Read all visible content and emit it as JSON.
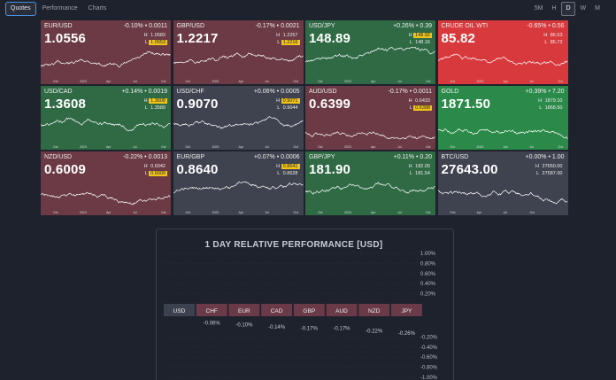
{
  "nav": {
    "tabs": [
      "Quotes",
      "Performance",
      "Charts"
    ],
    "active": 0
  },
  "range": {
    "buttons": [
      "5M",
      "H",
      "D",
      "W",
      "M"
    ],
    "active": 2
  },
  "colors": {
    "red": "#6b3a44",
    "green": "#2f6a45",
    "gray": "#3f434f",
    "brightRed": "#d8393c",
    "brightGreen": "#2b8a4a",
    "highlight": "#f0c419"
  },
  "tiles": [
    {
      "symbol": "EUR/USD",
      "change": "-0.10% • 0.0011",
      "price": "1.0556",
      "high_label": "H",
      "high": "1.0583",
      "low_label": "L",
      "low": "1.0553",
      "hi_mark": "low",
      "color": "red",
      "axis": [
        "Oct",
        "2023",
        "Apr",
        "Jul",
        "Oct"
      ]
    },
    {
      "symbol": "GBP/USD",
      "change": "-0.17% • 0.0021",
      "price": "1.2217",
      "high_label": "H",
      "high": "1.2257",
      "low_label": "L",
      "low": "1.2216",
      "hi_mark": "low",
      "color": "red",
      "axis": [
        "Oct",
        "2023",
        "Apr",
        "Jul",
        "Oct"
      ]
    },
    {
      "symbol": "USD/JPY",
      "change": "+0.26% • 0.39",
      "price": "148.89",
      "high_label": "H",
      "high": "148.92",
      "low_label": "L",
      "low": "148.16",
      "hi_mark": "high",
      "color": "green",
      "axis": [
        "Oct",
        "2023",
        "Apr",
        "Jul",
        "Oct"
      ]
    },
    {
      "symbol": "CRUDE OIL WTI",
      "change": "-0.65% • 0.56",
      "price": "85.82",
      "high_label": "H",
      "high": "86.53",
      "low_label": "L",
      "low": "85.72",
      "hi_mark": "none",
      "color": "brightRed",
      "axis": [
        "Oct",
        "2023",
        "Apr",
        "Jul",
        "Oct"
      ]
    },
    {
      "symbol": "USD/CAD",
      "change": "+0.14% • 0.0019",
      "price": "1.3608",
      "high_label": "H",
      "high": "1.3608",
      "low_label": "L",
      "low": "1.3589",
      "hi_mark": "high",
      "color": "green",
      "axis": [
        "Oct",
        "2023",
        "Apr",
        "Jul",
        "Oct"
      ]
    },
    {
      "symbol": "USD/CHF",
      "change": "+0.06% • 0.0005",
      "price": "0.9070",
      "high_label": "H",
      "high": "0.9071",
      "low_label": "L",
      "low": "0.9044",
      "hi_mark": "high",
      "color": "gray",
      "axis": [
        "Oct",
        "2023",
        "Apr",
        "Jul",
        "Oct"
      ]
    },
    {
      "symbol": "AUD/USD",
      "change": "-0.17% • 0.0011",
      "price": "0.6399",
      "high_label": "H",
      "high": "0.6433",
      "low_label": "L",
      "low": "0.6398",
      "hi_mark": "low",
      "color": "red",
      "axis": [
        "Oct",
        "2023",
        "Apr",
        "Jul",
        "Oct"
      ]
    },
    {
      "symbol": "GOLD",
      "change": "+0.39% • 7.20",
      "price": "1871.50",
      "high_label": "H",
      "high": "1879.10",
      "low_label": "L",
      "low": "1868.50",
      "hi_mark": "none",
      "color": "brightGreen",
      "axis": [
        "Oct",
        "2023",
        "Apr",
        "Jul",
        "Oct"
      ]
    },
    {
      "symbol": "NZD/USD",
      "change": "-0.22% • 0.0013",
      "price": "0.6009",
      "high_label": "H",
      "high": "0.6042",
      "low_label": "L",
      "low": "0.6009",
      "hi_mark": "low",
      "color": "red",
      "axis": [
        "Oct",
        "2023",
        "Apr",
        "Jul",
        "Oct"
      ]
    },
    {
      "symbol": "EUR/GBP",
      "change": "+0.07% • 0.0006",
      "price": "0.8640",
      "high_label": "H",
      "high": "0.8641",
      "low_label": "L",
      "low": "0.8628",
      "hi_mark": "high",
      "color": "gray",
      "axis": [
        "Oct",
        "2023",
        "Apr",
        "Jul",
        "Oct"
      ]
    },
    {
      "symbol": "GBP/JPY",
      "change": "+0.11% • 0.20",
      "price": "181.90",
      "high_label": "H",
      "high": "182.05",
      "low_label": "L",
      "low": "181.54",
      "hi_mark": "none",
      "color": "green",
      "axis": [
        "Oct",
        "2023",
        "Apr",
        "Jul",
        "Oct"
      ]
    },
    {
      "symbol": "BTC/USD",
      "change": "+0.00% • 1.00",
      "price": "27643.00",
      "high_label": "H",
      "high": "27650.00",
      "low_label": "L",
      "low": "27587.00",
      "hi_mark": "none",
      "color": "gray",
      "axis": [
        "Feb",
        "Apr",
        "Jul",
        "Oct",
        ""
      ]
    }
  ],
  "performance": {
    "title": "1 DAY RELATIVE PERFORMANCE  [USD]",
    "chart_data": {
      "type": "bar",
      "title": "1 DAY RELATIVE PERFORMANCE [USD]",
      "categories": [
        "USD",
        "CHF",
        "EUR",
        "CAD",
        "GBP",
        "AUD",
        "NZD",
        "JPY"
      ],
      "values": [
        0.0,
        -0.06,
        -0.1,
        -0.14,
        -0.17,
        -0.17,
        -0.22,
        -0.26
      ],
      "value_labels": [
        "",
        "-0.06%",
        "-0.10%",
        "-0.14%",
        "-0.17%",
        "-0.17%",
        "-0.22%",
        "-0.26%"
      ],
      "yticks": [
        1.0,
        0.8,
        0.6,
        0.4,
        0.2,
        -0.2,
        -0.4,
        -0.6,
        -0.8,
        -1.0
      ],
      "ytick_labels": [
        "1.00%",
        "0.80%",
        "0.60%",
        "0.40%",
        "0.20%",
        "-0.20%",
        "-0.40%",
        "-0.60%",
        "-0.80%",
        "-1.00%"
      ],
      "ylim": [
        -1.0,
        1.0
      ]
    }
  }
}
